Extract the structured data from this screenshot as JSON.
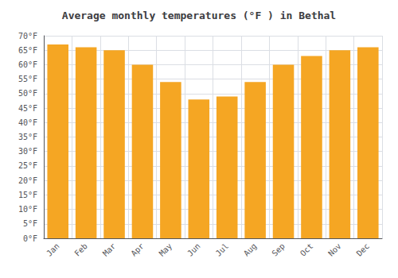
{
  "chart_data": {
    "type": "bar",
    "title": "Average monthly temperatures (°F ) in Bethal",
    "categories": [
      "Jan",
      "Feb",
      "Mar",
      "Apr",
      "May",
      "Jun",
      "Jul",
      "Aug",
      "Sep",
      "Oct",
      "Nov",
      "Dec"
    ],
    "values": [
      67,
      66,
      65,
      60,
      54,
      48,
      49,
      54,
      60,
      63,
      65,
      66
    ],
    "color": "#F5A623",
    "ylim": [
      0,
      70
    ],
    "yticks": [
      {
        "value": 0,
        "label": "0°F"
      },
      {
        "value": 5,
        "label": "5°F"
      },
      {
        "value": 10,
        "label": "10°F"
      },
      {
        "value": 15,
        "label": "15°F"
      },
      {
        "value": 20,
        "label": "20°F"
      },
      {
        "value": 25,
        "label": "25°F"
      },
      {
        "value": 30,
        "label": "30°F"
      },
      {
        "value": 35,
        "label": "35°F"
      },
      {
        "value": 40,
        "label": "40°F"
      },
      {
        "value": 45,
        "label": "45°F"
      },
      {
        "value": 50,
        "label": "50°F"
      },
      {
        "value": 55,
        "label": "55°F"
      },
      {
        "value": 60,
        "label": "60°F"
      },
      {
        "value": 65,
        "label": "65°F"
      },
      {
        "value": 70,
        "label": "70°F"
      }
    ],
    "grid": true
  }
}
